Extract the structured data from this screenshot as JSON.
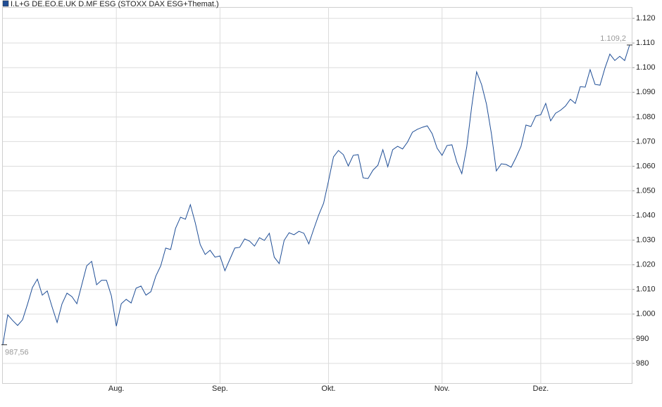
{
  "chart_data": {
    "type": "line",
    "legend_color": "#1f4e96",
    "categories": [
      null,
      null,
      null,
      null,
      null,
      null,
      null,
      null,
      null,
      null,
      null,
      null,
      null,
      null,
      null,
      null,
      null,
      null,
      null,
      null,
      null,
      null,
      null,
      "Aug.",
      null,
      null,
      null,
      null,
      null,
      null,
      null,
      null,
      null,
      null,
      null,
      null,
      null,
      null,
      null,
      null,
      null,
      null,
      null,
      null,
      "Sep.",
      null,
      null,
      null,
      null,
      null,
      null,
      null,
      null,
      null,
      null,
      null,
      null,
      null,
      null,
      null,
      null,
      null,
      null,
      null,
      null,
      null,
      "Okt.",
      null,
      null,
      null,
      null,
      null,
      null,
      null,
      null,
      null,
      null,
      null,
      null,
      null,
      null,
      null,
      null,
      null,
      null,
      null,
      null,
      null,
      null,
      "Nov.",
      null,
      null,
      null,
      null,
      null,
      null,
      null,
      null,
      null,
      null,
      null,
      null,
      null,
      null,
      null,
      null,
      null,
      null,
      null,
      "Dez.",
      null,
      null,
      null,
      null,
      null,
      null,
      null,
      null,
      null,
      null,
      null,
      null,
      null,
      null,
      null,
      null,
      null,
      null
    ],
    "series": [
      {
        "name": "I.L+G DE.EO.E.UK D.MF ESG (STOXX DAX ESG+Themat.)",
        "color": "#1f4e96",
        "values": [
          987.56,
          999.7,
          997.4,
          995.4,
          997.7,
          1004.0,
          1010.8,
          1014.2,
          1007.7,
          1009.4,
          1002.8,
          996.6,
          1004.2,
          1008.5,
          1007.1,
          1004.2,
          1011.9,
          1019.6,
          1021.4,
          1011.9,
          1013.7,
          1013.7,
          1007.4,
          995.1,
          1004.2,
          1006.0,
          1004.5,
          1010.5,
          1011.4,
          1007.7,
          1009.1,
          1015.4,
          1019.6,
          1026.8,
          1026.2,
          1034.8,
          1039.3,
          1038.5,
          1044.4,
          1037.0,
          1028.2,
          1024.2,
          1025.9,
          1023.1,
          1023.6,
          1017.6,
          1022.2,
          1026.8,
          1027.1,
          1030.5,
          1029.6,
          1027.6,
          1031.0,
          1029.9,
          1032.8,
          1023.1,
          1020.5,
          1029.9,
          1033.0,
          1032.2,
          1033.6,
          1032.8,
          1028.5,
          1034.5,
          1040.2,
          1045.0,
          1054.1,
          1063.8,
          1066.4,
          1064.7,
          1060.1,
          1064.4,
          1064.7,
          1055.3,
          1055.0,
          1058.4,
          1060.4,
          1066.7,
          1059.8,
          1066.7,
          1068.1,
          1067.0,
          1069.8,
          1073.8,
          1075.0,
          1075.8,
          1076.4,
          1073.2,
          1067.3,
          1064.4,
          1068.4,
          1068.7,
          1061.6,
          1057.0,
          1067.8,
          1084.1,
          1098.3,
          1093.2,
          1085.2,
          1073.2,
          1058.1,
          1061.0,
          1060.7,
          1059.6,
          1063.6,
          1068.1,
          1076.7,
          1076.1,
          1080.4,
          1080.9,
          1085.5,
          1078.4,
          1081.5,
          1082.7,
          1084.4,
          1087.2,
          1085.5,
          1092.3,
          1092.1,
          1099.2,
          1093.2,
          1092.9,
          1099.8,
          1105.5,
          1102.9,
          1104.6,
          1102.9,
          1109.2
        ]
      }
    ],
    "start_label": {
      "value": 987.56,
      "label": "987,56"
    },
    "end_label": {
      "value": 1109.2,
      "label": "1.109,2"
    },
    "ylim": [
      972.0,
      1124.6
    ],
    "yticks": [
      980,
      990,
      {
        "value": 1000,
        "label": "1.000"
      },
      {
        "value": 1010,
        "label": "1.010"
      },
      {
        "value": 1020,
        "label": "1.020"
      },
      {
        "value": 1030,
        "label": "1.030"
      },
      {
        "value": 1040,
        "label": "1.040"
      },
      {
        "value": 1050,
        "label": "1.050"
      },
      {
        "value": 1060,
        "label": "1.060"
      },
      {
        "value": 1070,
        "label": "1.070"
      },
      {
        "value": 1080,
        "label": "1.080"
      },
      {
        "value": 1090,
        "label": "1.090"
      },
      {
        "value": 1100,
        "label": "1.100"
      },
      {
        "value": 1110,
        "label": "1.110"
      },
      {
        "value": 1120,
        "label": "1.120"
      }
    ],
    "grid": true
  }
}
